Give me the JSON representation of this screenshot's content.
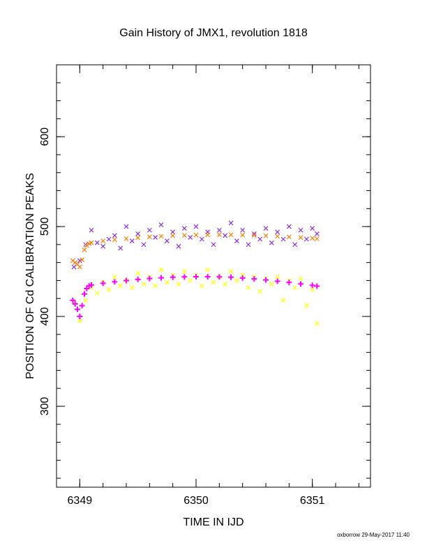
{
  "chart_data": {
    "type": "scatter",
    "title": "Gain History of JMX1, revolution 1818",
    "xlabel": "TIME IN IJD",
    "ylabel": "POSITION OF Cd CALIBRATION PEAKS",
    "xlim": [
      6348.8,
      6351.5
    ],
    "ylim": [
      210,
      680
    ],
    "x_ticks": [
      6349,
      6350,
      6351
    ],
    "y_ticks": [
      300,
      400,
      500,
      600
    ],
    "x_minor_step": 0.2,
    "y_minor_step": 20,
    "grid": false,
    "series": [
      {
        "color": "#8a2be2",
        "marker": "x",
        "x": [
          6348.95,
          6349.0,
          6349.05,
          6349.1,
          6349.15,
          6349.2,
          6349.25,
          6349.3,
          6349.35,
          6349.4,
          6349.45,
          6349.5,
          6349.55,
          6349.6,
          6349.65,
          6349.7,
          6349.75,
          6349.8,
          6349.85,
          6349.9,
          6349.95,
          6350.0,
          6350.05,
          6350.1,
          6350.15,
          6350.2,
          6350.25,
          6350.3,
          6350.35,
          6350.4,
          6350.45,
          6350.5,
          6350.55,
          6350.6,
          6350.65,
          6350.7,
          6350.75,
          6350.8,
          6350.85,
          6350.9,
          6350.95,
          6351.0,
          6351.04
        ],
        "y": [
          455,
          462,
          480,
          496,
          482,
          478,
          486,
          490,
          476,
          500,
          484,
          492,
          480,
          496,
          488,
          502,
          484,
          494,
          478,
          498,
          488,
          500,
          486,
          494,
          480,
          496,
          490,
          504,
          484,
          496,
          480,
          492,
          486,
          498,
          482,
          494,
          486,
          500,
          480,
          496,
          486,
          498,
          492
        ]
      },
      {
        "color": "#ff7f00",
        "marker": "x",
        "x": [
          6348.94,
          6348.96,
          6348.98,
          6349.0,
          6349.02,
          6349.04,
          6349.06,
          6349.08,
          6349.1,
          6349.2,
          6349.3,
          6349.4,
          6349.5,
          6349.6,
          6349.7,
          6349.8,
          6349.9,
          6350.0,
          6350.1,
          6350.2,
          6350.3,
          6350.4,
          6350.5,
          6350.6,
          6350.7,
          6350.8,
          6350.9,
          6351.0,
          6351.04
        ],
        "y": [
          462,
          460,
          458,
          455,
          463,
          474,
          479,
          481,
          482,
          484,
          485.5,
          486.5,
          487.5,
          488.5,
          489.2,
          489.8,
          490.2,
          490.6,
          490.8,
          491,
          490.8,
          490.6,
          490.2,
          489.8,
          489.2,
          488.6,
          487.8,
          487,
          486.5
        ]
      },
      {
        "color": "#ffff00",
        "marker": "x",
        "x": [
          6348.95,
          6349.0,
          6349.05,
          6349.1,
          6349.15,
          6349.2,
          6349.25,
          6349.3,
          6349.35,
          6349.4,
          6349.45,
          6349.5,
          6349.55,
          6349.6,
          6349.65,
          6349.7,
          6349.75,
          6349.8,
          6349.85,
          6349.9,
          6349.95,
          6350.0,
          6350.05,
          6350.1,
          6350.15,
          6350.2,
          6350.25,
          6350.3,
          6350.35,
          6350.4,
          6350.45,
          6350.5,
          6350.55,
          6350.6,
          6350.65,
          6350.7,
          6350.75,
          6350.8,
          6350.85,
          6350.9,
          6350.95,
          6351.0,
          6351.04
        ],
        "y": [
          416,
          395,
          418,
          432,
          426,
          438,
          430,
          444,
          434,
          440,
          432,
          448,
          436,
          444,
          434,
          452,
          438,
          446,
          436,
          450,
          440,
          446,
          434,
          452,
          438,
          444,
          436,
          450,
          440,
          446,
          432,
          444,
          428,
          442,
          436,
          444,
          418,
          440,
          432,
          442,
          412,
          430,
          392
        ]
      },
      {
        "color": "#ff00ff",
        "marker": "+",
        "x": [
          6348.94,
          6348.96,
          6348.98,
          6349.0,
          6349.02,
          6349.04,
          6349.06,
          6349.08,
          6349.1,
          6349.2,
          6349.3,
          6349.4,
          6349.5,
          6349.6,
          6349.7,
          6349.8,
          6349.9,
          6350.0,
          6350.1,
          6350.2,
          6350.3,
          6350.4,
          6350.5,
          6350.6,
          6350.7,
          6350.8,
          6350.9,
          6351.0,
          6351.04
        ],
        "y": [
          418,
          414,
          408,
          400,
          412,
          425,
          431,
          434,
          435,
          437,
          438.5,
          440,
          441.2,
          442.2,
          443,
          443.6,
          444,
          444.2,
          444.2,
          444,
          443.6,
          442.8,
          441.8,
          440.6,
          439.2,
          437.8,
          436.2,
          434.6,
          433.8
        ]
      }
    ]
  },
  "footer": {
    "credit": "oxborrow 29-May-2017 11:40"
  }
}
